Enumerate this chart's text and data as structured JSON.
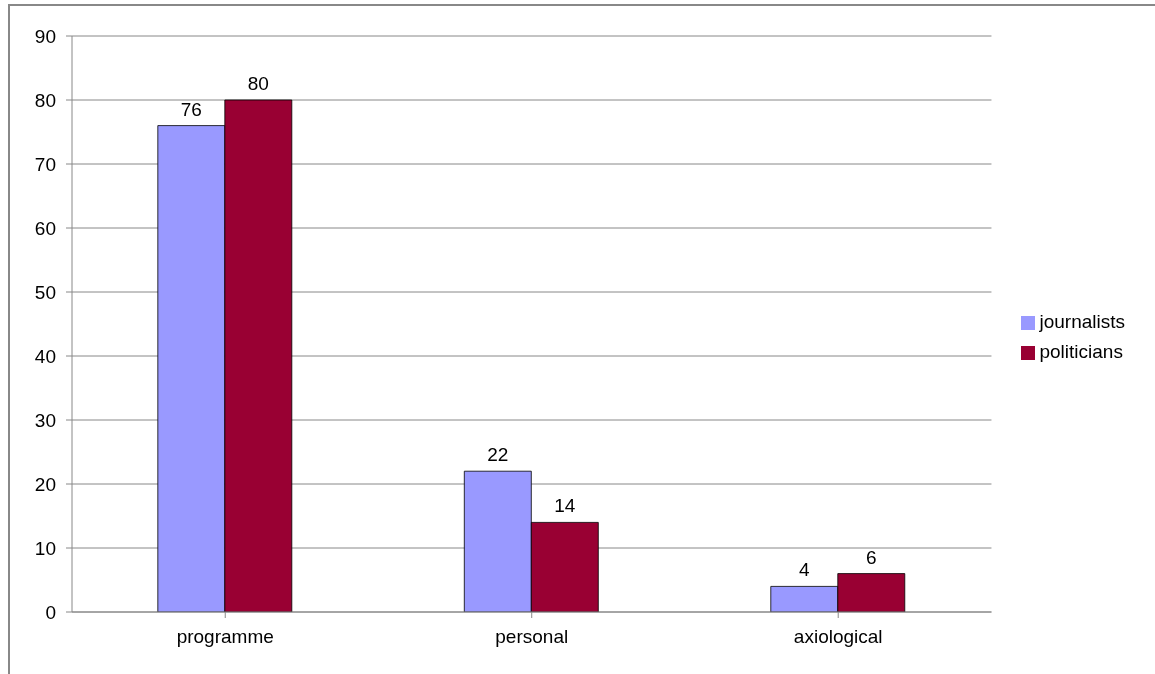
{
  "chart_data": {
    "type": "bar",
    "categories": [
      "programme",
      "personal",
      "axiological"
    ],
    "series": [
      {
        "name": "journalists",
        "color": "#9999ff",
        "values": [
          76,
          22,
          4
        ]
      },
      {
        "name": "politicians",
        "color": "#990033",
        "values": [
          80,
          14,
          6
        ]
      }
    ],
    "ylim": [
      0,
      90
    ],
    "yticks": [
      0,
      10,
      20,
      30,
      40,
      50,
      60,
      70,
      80,
      90
    ],
    "grid": "y",
    "legend": "right",
    "data_labels": true
  }
}
